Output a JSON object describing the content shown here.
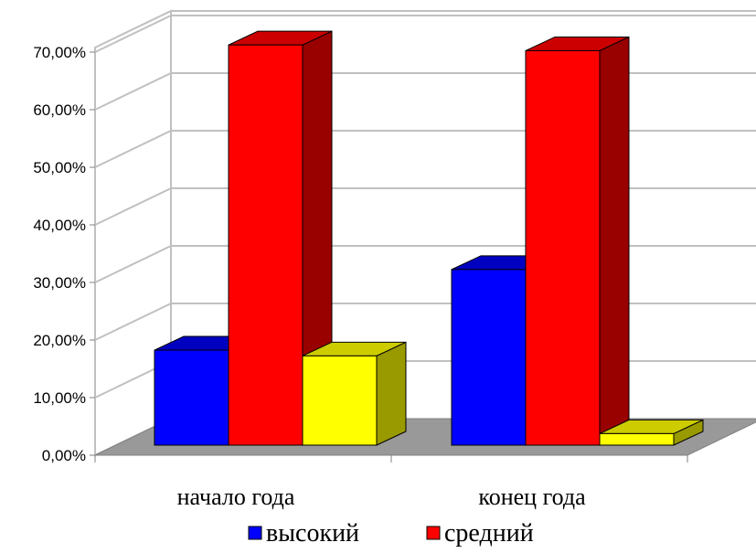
{
  "chart_data": {
    "type": "bar",
    "style": "3d-clustered-column",
    "categories": [
      "начало года",
      "конец года"
    ],
    "series": [
      {
        "name": "высокий",
        "values": [
          16.5,
          30.5
        ],
        "color": "#0000ff",
        "side_color": "#000080",
        "top_color": "#0000c0"
      },
      {
        "name": "средний",
        "values": [
          69.5,
          68.5
        ],
        "color": "#ff0000",
        "side_color": "#990000",
        "top_color": "#cc0000"
      },
      {
        "name": "",
        "values": [
          15.5,
          2.0
        ],
        "color": "#ffff00",
        "side_color": "#999900",
        "top_color": "#cccc00"
      }
    ],
    "ylim": [
      0,
      70
    ],
    "y_ticks": [
      "0,00%",
      "10,00%",
      "20,00%",
      "30,00%",
      "40,00%",
      "50,00%",
      "60,00%",
      "70,00%"
    ],
    "grid": true,
    "legend_position": "bottom",
    "legend_entries": [
      "высокий",
      "средний"
    ]
  }
}
